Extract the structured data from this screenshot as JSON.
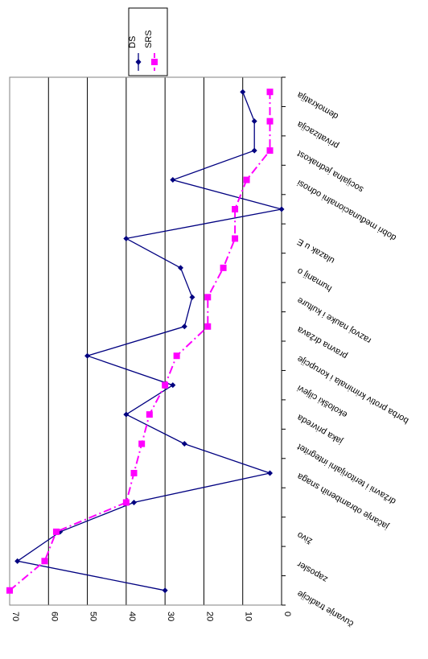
{
  "chart_data": {
    "type": "line",
    "orientation": "rotated-90-clockwise",
    "title": "",
    "xlabel": "",
    "ylabel": "",
    "ylim": [
      0,
      70
    ],
    "yticks": [
      0,
      10,
      20,
      30,
      40,
      50,
      60,
      70
    ],
    "grid": true,
    "legend_position": "top-right",
    "categories": [
      "čuvanje tradicije",
      "zaposler",
      "živo",
      "",
      "jačanje obrambenih snaga",
      "državni i teritorijalni integritet",
      "jaka privreda",
      "ekološki ciljevi",
      "borba protiv kriminala i korupcije",
      "pravna država",
      "razvoj nauke i kulture",
      "humanij o",
      "ulazak u E",
      "",
      "dobri međunacionalni odnosi",
      "socijalna jednakost",
      "privatizacija",
      "demokratija"
    ],
    "series": [
      {
        "name": "DS",
        "color": "#000080",
        "marker": "diamond",
        "line": "solid",
        "values": [
          30,
          68,
          57,
          38,
          3,
          25,
          40,
          28,
          50,
          25,
          23,
          26,
          40,
          0,
          28,
          7,
          7,
          10
        ]
      },
      {
        "name": "SRS",
        "color": "#FF00FF",
        "marker": "square",
        "line": "dash-dot",
        "values": [
          70,
          61,
          58,
          40,
          38,
          36,
          34,
          30,
          27,
          19,
          19,
          15,
          12,
          12,
          9,
          3,
          3,
          3
        ]
      }
    ]
  }
}
